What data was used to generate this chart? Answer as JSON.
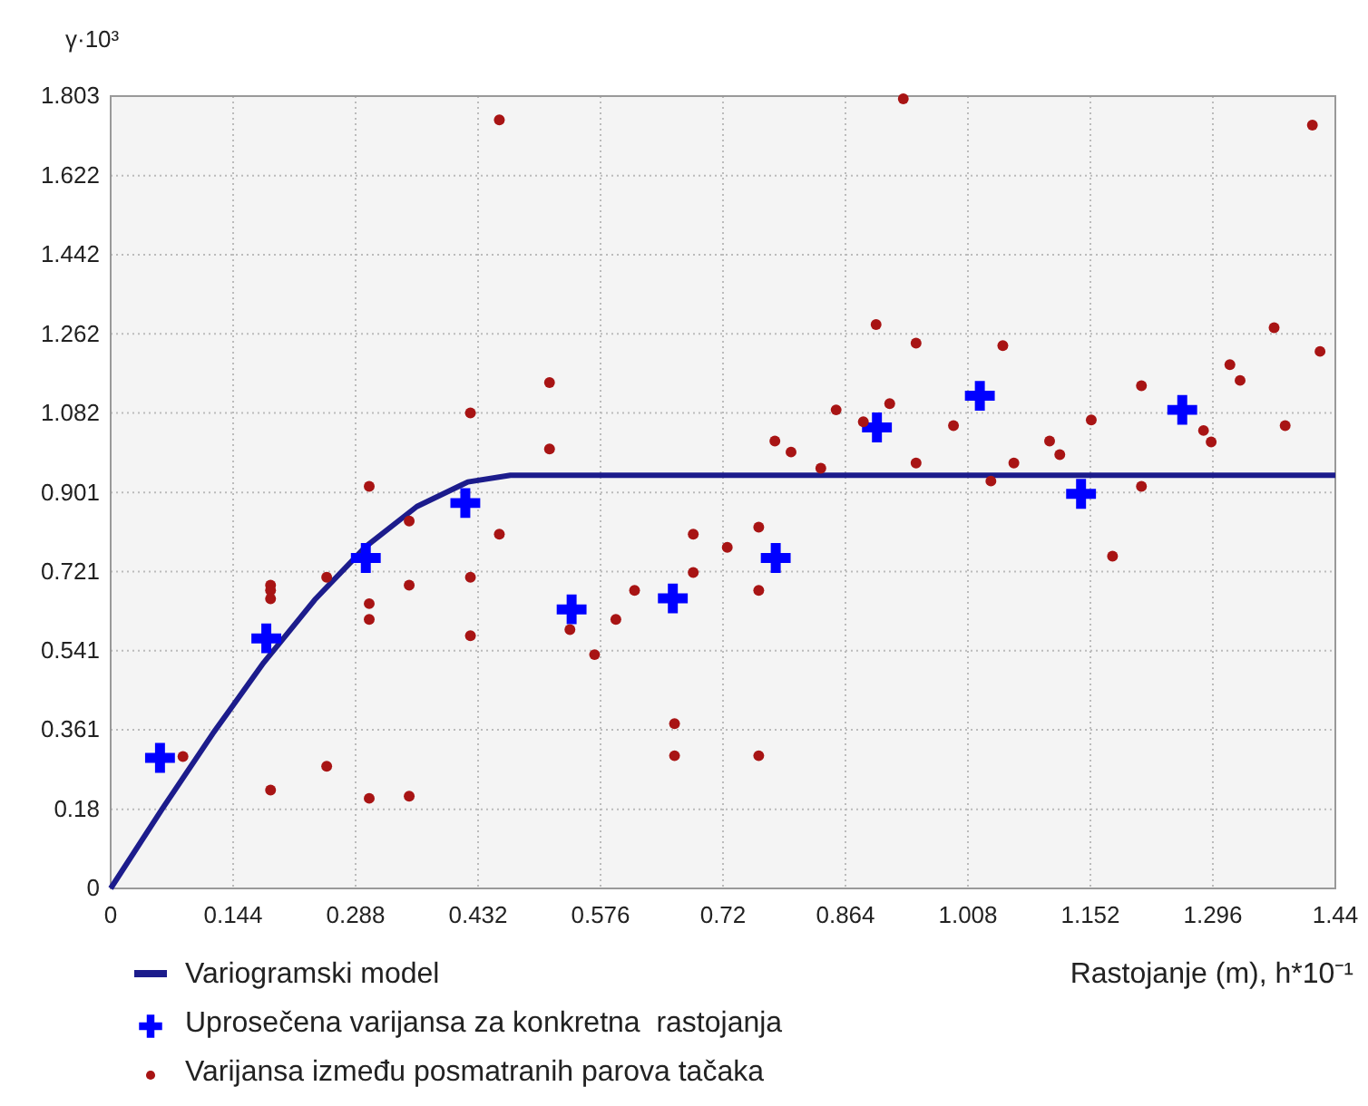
{
  "chart_data": {
    "type": "scatter",
    "xlabel": "Rastojanje (m), h*10⁻¹",
    "ylabel": "γ·10³",
    "xlim": [
      0,
      1.44
    ],
    "ylim": [
      0,
      1.803
    ],
    "xticks": [
      0,
      0.144,
      0.288,
      0.432,
      0.576,
      0.72,
      0.864,
      1.008,
      1.152,
      1.296,
      1.44
    ],
    "yticks": [
      0,
      0.18,
      0.361,
      0.541,
      0.721,
      0.901,
      1.082,
      1.262,
      1.442,
      1.622,
      1.803
    ],
    "grid": true,
    "legend": "bottom left",
    "series": [
      {
        "name": "Variogramski model",
        "type": "line",
        "color": "#1c1c8c",
        "marker": "none",
        "line_style": "solid",
        "x": [
          0,
          0.06,
          0.12,
          0.18,
          0.24,
          0.3,
          0.36,
          0.42,
          0.47,
          1.44
        ],
        "values": [
          0,
          0.179,
          0.352,
          0.514,
          0.657,
          0.778,
          0.869,
          0.925,
          0.94,
          0.94
        ]
      },
      {
        "name": "Uprosečena varijansa za konkretna  rastojanja",
        "type": "scatter",
        "color": "#0000ff",
        "marker": "cross",
        "x": [
          0.058,
          0.183,
          0.3,
          0.417,
          0.542,
          0.661,
          0.782,
          0.901,
          1.022,
          1.141,
          1.26
        ],
        "values": [
          0.297,
          0.569,
          0.752,
          0.877,
          0.635,
          0.66,
          0.752,
          1.049,
          1.121,
          0.898,
          1.089
        ]
      },
      {
        "name": "Varijansa između posmatranih parova tačaka",
        "type": "scatter",
        "color": "#a81414",
        "marker": "circle",
        "x": [
          0.085,
          0.188,
          0.188,
          0.188,
          0.188,
          0.254,
          0.254,
          0.304,
          0.304,
          0.304,
          0.304,
          0.351,
          0.351,
          0.351,
          0.423,
          0.423,
          0.423,
          0.457,
          0.457,
          0.516,
          0.516,
          0.54,
          0.569,
          0.594,
          0.616,
          0.663,
          0.663,
          0.685,
          0.685,
          0.725,
          0.762,
          0.762,
          0.762,
          0.781,
          0.8,
          0.835,
          0.853,
          0.885,
          0.9,
          0.916,
          0.932,
          0.947,
          0.947,
          0.991,
          1.035,
          1.049,
          1.062,
          1.104,
          1.116,
          1.153,
          1.178,
          1.212,
          1.212,
          1.285,
          1.294,
          1.316,
          1.328,
          1.368,
          1.381,
          1.413,
          1.422
        ],
        "values": [
          0.3,
          0.69,
          0.678,
          0.659,
          0.224,
          0.708,
          0.278,
          0.915,
          0.648,
          0.612,
          0.205,
          0.836,
          0.69,
          0.21,
          1.082,
          0.708,
          0.575,
          1.749,
          0.806,
          1.151,
          1.0,
          0.589,
          0.532,
          0.612,
          0.678,
          0.375,
          0.302,
          0.806,
          0.719,
          0.776,
          0.822,
          0.678,
          0.302,
          1.018,
          0.993,
          0.956,
          1.089,
          1.062,
          1.283,
          1.103,
          1.797,
          1.241,
          0.968,
          1.053,
          0.927,
          1.235,
          0.968,
          1.018,
          0.987,
          1.066,
          0.756,
          1.144,
          0.915,
          1.042,
          1.016,
          1.192,
          1.156,
          1.276,
          1.053,
          1.737,
          1.222
        ]
      }
    ]
  }
}
